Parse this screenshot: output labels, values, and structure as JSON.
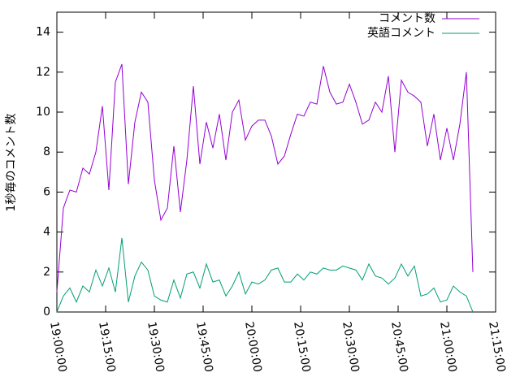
{
  "chart_data": {
    "type": "line",
    "y_label": "1秒毎のコメント数",
    "x": [
      "19:00:00",
      "19:02:00",
      "19:04:00",
      "19:06:00",
      "19:08:00",
      "19:10:00",
      "19:12:00",
      "19:14:00",
      "19:16:00",
      "19:18:00",
      "19:20:00",
      "19:22:00",
      "19:24:00",
      "19:26:00",
      "19:28:00",
      "19:30:00",
      "19:32:00",
      "19:34:00",
      "19:36:00",
      "19:38:00",
      "19:40:00",
      "19:42:00",
      "19:44:00",
      "19:46:00",
      "19:48:00",
      "19:50:00",
      "19:52:00",
      "19:54:00",
      "19:56:00",
      "19:58:00",
      "20:00:00",
      "20:02:00",
      "20:04:00",
      "20:06:00",
      "20:08:00",
      "20:10:00",
      "20:12:00",
      "20:14:00",
      "20:16:00",
      "20:18:00",
      "20:20:00",
      "20:22:00",
      "20:24:00",
      "20:26:00",
      "20:28:00",
      "20:30:00",
      "20:32:00",
      "20:34:00",
      "20:36:00",
      "20:38:00",
      "20:40:00",
      "20:42:00",
      "20:44:00",
      "20:46:00",
      "20:48:00",
      "20:50:00",
      "20:52:00",
      "20:54:00",
      "20:56:00",
      "20:58:00",
      "21:00:00",
      "21:02:00",
      "21:04:00",
      "21:06:00",
      "21:08:00"
    ],
    "series": [
      {
        "name": "コメント数",
        "color": "#9400d3",
        "values": [
          1.0,
          5.2,
          6.1,
          6.0,
          7.2,
          6.9,
          8.0,
          10.3,
          6.1,
          11.5,
          12.4,
          6.4,
          9.5,
          11.0,
          10.5,
          6.6,
          4.6,
          5.2,
          8.3,
          5.0,
          7.6,
          11.3,
          7.4,
          9.5,
          8.2,
          9.9,
          7.6,
          10.0,
          10.6,
          8.6,
          9.3,
          9.6,
          9.6,
          8.8,
          7.4,
          7.8,
          8.9,
          9.9,
          9.8,
          10.5,
          10.4,
          12.3,
          11.0,
          10.4,
          10.5,
          11.4,
          10.5,
          9.4,
          9.6,
          10.5,
          10.0,
          11.8,
          8.0,
          11.6,
          11.0,
          10.8,
          10.5,
          8.3,
          9.9,
          7.6,
          9.2,
          7.6,
          9.4,
          12.0,
          2.0
        ]
      },
      {
        "name": "英語コメント",
        "color": "#009e73",
        "values": [
          0,
          0.8,
          1.2,
          0.5,
          1.3,
          1.0,
          2.1,
          1.3,
          2.2,
          1.0,
          3.7,
          0.5,
          1.8,
          2.5,
          2.1,
          0.8,
          0.6,
          0.5,
          1.6,
          0.7,
          1.9,
          2.0,
          1.2,
          2.4,
          1.5,
          1.6,
          0.8,
          1.3,
          2.0,
          0.9,
          1.5,
          1.4,
          1.6,
          2.1,
          2.2,
          1.5,
          1.5,
          1.9,
          1.6,
          2.0,
          1.9,
          2.2,
          2.1,
          2.1,
          2.3,
          2.2,
          2.1,
          1.6,
          2.4,
          1.8,
          1.7,
          1.4,
          1.7,
          2.4,
          1.8,
          2.3,
          0.8,
          0.9,
          1.2,
          0.5,
          0.6,
          1.3,
          1.0,
          0.8,
          0
        ]
      }
    ],
    "xlim": [
      "19:00:00",
      "21:15:00"
    ],
    "xticks": [
      "19:00:00",
      "19:15:00",
      "19:30:00",
      "19:45:00",
      "20:00:00",
      "20:15:00",
      "20:30:00",
      "20:45:00",
      "21:00:00",
      "21:15:00"
    ],
    "ylim": [
      0,
      15
    ],
    "yticks": [
      0,
      2,
      4,
      6,
      8,
      10,
      12,
      14
    ],
    "legend": "top-right"
  }
}
